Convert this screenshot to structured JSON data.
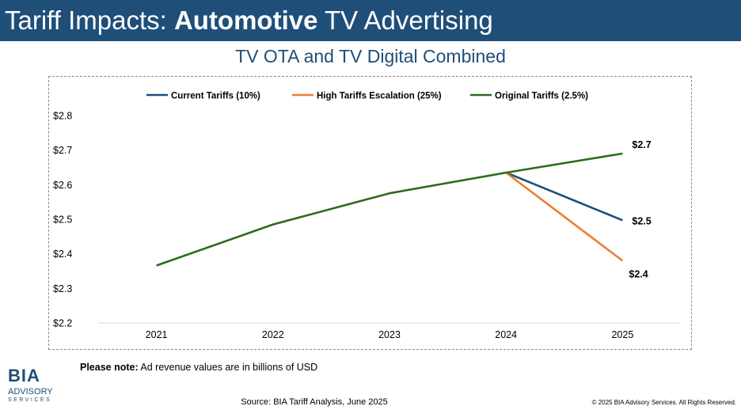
{
  "header": {
    "title_prefix": "Tariff Impacts: ",
    "title_bold": "Automotive",
    "title_suffix": " TV Advertising",
    "background_color": "#1f4e79"
  },
  "subtitle": "TV OTA and TV Digital Combined",
  "note": {
    "label": "Please note:",
    "text": " Ad revenue values are in billions of USD"
  },
  "logo": {
    "text_top": "BIA",
    "text_middle": "ADVISORY",
    "text_bottom": "SERVICES"
  },
  "source": "Source: BIA Tariff Analysis, June 2025",
  "copyright": "© 2025 BIA Advisory Services. All Rights Reserved.",
  "chart_data": {
    "type": "line",
    "title": "TV OTA and TV Digital Combined",
    "xlabel": "",
    "ylabel": "",
    "x": [
      "2021",
      "2022",
      "2023",
      "2024",
      "2025"
    ],
    "ylim": [
      2.2,
      2.8
    ],
    "yticks": [
      2.2,
      2.3,
      2.4,
      2.5,
      2.6,
      2.7,
      2.8
    ],
    "ytick_labels": [
      "$2.2",
      "$2.3",
      "$2.4",
      "$2.5",
      "$2.6",
      "$2.7",
      "$2.8"
    ],
    "grid": false,
    "legend_position": "top",
    "series": [
      {
        "name": "Current Tariffs (10%)",
        "color": "#1f4e79",
        "values": [
          null,
          null,
          null,
          2.635,
          2.497
        ],
        "end_label": "$2.5"
      },
      {
        "name": "High Tariffs Escalation (25%)",
        "color": "#ed7d31",
        "values": [
          null,
          null,
          null,
          2.635,
          2.38
        ],
        "end_label": "$2.4"
      },
      {
        "name": "Original Tariffs (2.5%)",
        "color": "#2e6b1f",
        "values": [
          2.366,
          2.485,
          2.575,
          2.635,
          2.69
        ],
        "end_label": "$2.7"
      }
    ]
  }
}
